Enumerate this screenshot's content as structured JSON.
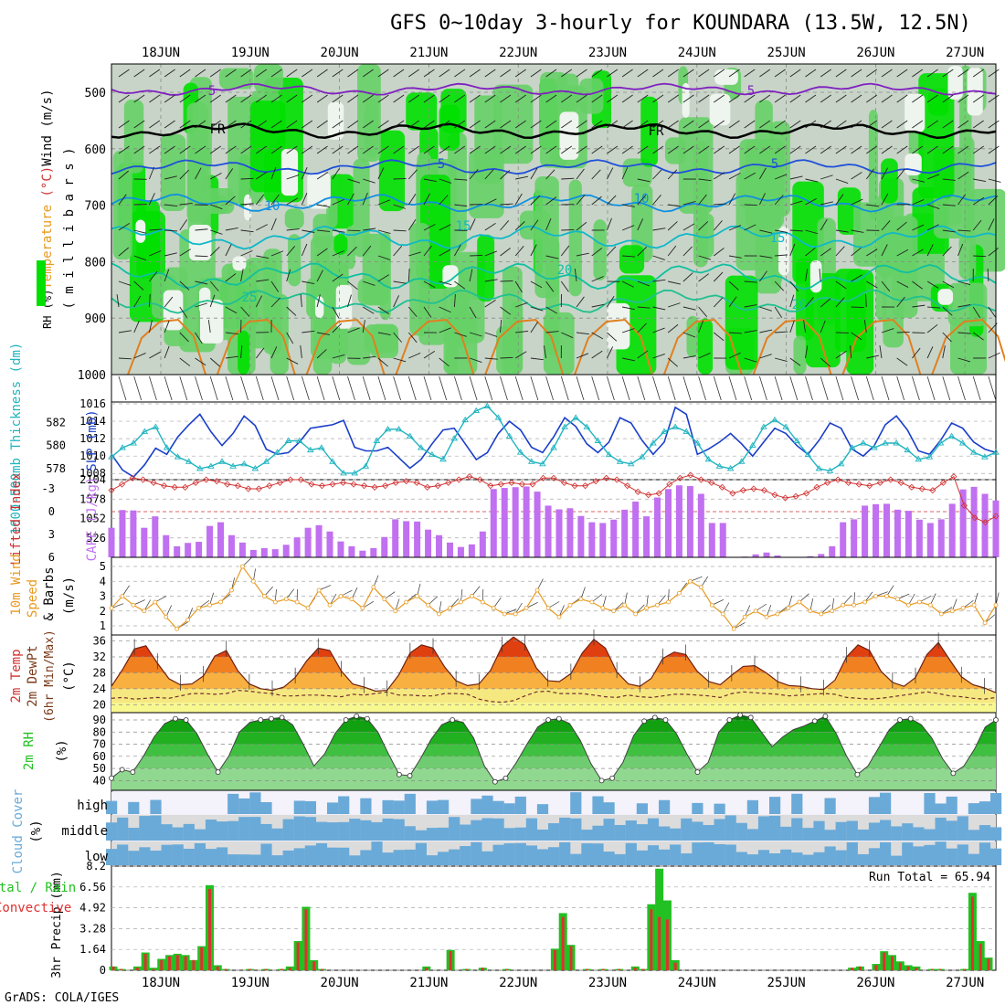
{
  "title": "GFS 0~10day 3-hourly for KOUNDARA (13.5W, 12.5N)",
  "credit": "GrADS: COLA/IGES",
  "run_total_label": "Run Total = 65.94",
  "colors": {
    "grid": "#999999",
    "rh_green1": "#00e000",
    "rh_green2": "#66d066",
    "rh_grey": "#c8d4c8",
    "slp": "#1a3ec8",
    "thick": "#20b4c0",
    "li": "#d03030",
    "cape": "#c070f0",
    "wind10": "#e89a20",
    "cloud": "#6aaad8",
    "rain_total": "#22c022",
    "rain_conv": "#e03030",
    "rh2m_dark": "#008000",
    "rh2m_light": "#88dd88"
  },
  "chart_data": [
    {
      "panel": "upper-air",
      "type": "heatmap",
      "ylabel_parts": [
        "RH (%)",
        "Temperature",
        " (°C)",
        "Wind",
        " (m/s)"
      ],
      "ylabel2": "( m i l l i b a r s )",
      "y_ticks": [
        "500",
        "600",
        "700",
        "800",
        "900",
        "1000"
      ],
      "isotherm_labels": [
        "FR",
        "FR",
        "5",
        "5",
        "5",
        "5",
        "10",
        "10",
        "15",
        "15",
        "20",
        "20",
        "25"
      ],
      "dates": [
        "18JUN",
        "19JUN",
        "20JUN",
        "21JUN",
        "22JUN",
        "23JUN",
        "24JUN",
        "25JUN",
        "26JUN",
        "27JUN"
      ]
    },
    {
      "panel": "slp-thickness",
      "type": "line",
      "ylabel_left": "1000-500mb Thickness (dm)",
      "ylabel_right": "SLP (mb)",
      "left_ticks": [
        "582",
        "580",
        "578"
      ],
      "right_ticks": [
        "1016",
        "1014",
        "1012",
        "1010",
        "1008"
      ],
      "series": [
        {
          "name": "SLP",
          "values": [
            1010.2,
            1008.4,
            1007.6,
            1009.0,
            1010.9,
            1010.2,
            1012.2,
            1013.6,
            1014.8,
            1012.8,
            1011.2,
            1012.6,
            1014.6,
            1013.5,
            1010.8,
            1010.2,
            1010.4,
            1011.6,
            1013.2,
            1013.4,
            1013.6,
            1014.1,
            1011.0,
            1010.6,
            1010.6,
            1011.0,
            1009.8,
            1008.6,
            1009.6,
            1011.4,
            1013.0,
            1013.2,
            1011.4,
            1009.6,
            1010.4,
            1012.6,
            1014.0,
            1013.0,
            1011.0,
            1010.4,
            1012.2,
            1014.4,
            1013.4,
            1011.4,
            1010.4,
            1011.6,
            1014.4,
            1013.8,
            1011.8,
            1010.2,
            1011.6,
            1015.6,
            1014.8,
            1010.2,
            1010.8,
            1011.6,
            1012.6,
            1011.4,
            1010.0,
            1011.6,
            1013.2,
            1012.6,
            1011.2,
            1010.2,
            1011.8,
            1013.8,
            1013.2,
            1010.8,
            1010.0,
            1011.2,
            1013.6,
            1014.6,
            1013.0,
            1010.6,
            1010.2,
            1011.8,
            1013.8,
            1013.2,
            1011.6,
            1010.8,
            1010.4
          ]
        },
        {
          "name": "Thickness",
          "values": [
            579.0,
            579.8,
            580.2,
            581.2,
            581.6,
            579.8,
            579.0,
            578.6,
            578.0,
            578.2,
            578.6,
            578.2,
            578.4,
            578.0,
            578.6,
            579.4,
            580.4,
            580.4,
            579.6,
            579.8,
            578.6,
            577.6,
            577.6,
            578.2,
            580.4,
            581.4,
            581.4,
            580.8,
            579.8,
            579.2,
            578.8,
            580.6,
            582.2,
            583.0,
            583.4,
            582.4,
            580.8,
            579.4,
            578.6,
            578.4,
            579.8,
            581.6,
            582.4,
            581.6,
            580.4,
            579.2,
            578.6,
            578.4,
            579.0,
            580.2,
            581.2,
            581.6,
            581.2,
            580.2,
            578.8,
            578.2,
            578.0,
            578.6,
            580.0,
            581.6,
            582.2,
            581.6,
            580.4,
            579.2,
            578.0,
            577.8,
            578.4,
            579.8,
            580.2,
            579.8,
            580.2,
            580.2,
            579.6,
            578.8,
            579.0,
            580.2,
            580.8,
            580.2,
            579.4,
            579.0,
            579.4
          ]
        }
      ]
    },
    {
      "panel": "li-cape",
      "type": "bar",
      "ylabel_left": "Lifted Index",
      "ylabel_right": "CAPE (J/kg)",
      "left_ticks": [
        "-3",
        "0",
        "3",
        "6"
      ],
      "right_ticks": [
        "2104",
        "1578",
        "1052",
        "526"
      ],
      "series": [
        {
          "name": "CAPE",
          "values": [
            800,
            1280,
            1270,
            800,
            1110,
            600,
            300,
            390,
            420,
            850,
            950,
            600,
            400,
            200,
            250,
            220,
            340,
            540,
            800,
            870,
            700,
            430,
            300,
            180,
            250,
            550,
            1030,
            980,
            970,
            750,
            600,
            400,
            280,
            350,
            700,
            1850,
            1880,
            1900,
            1920,
            1780,
            1400,
            1300,
            1330,
            1120,
            950,
            930,
            1020,
            1290,
            1510,
            1110,
            1620,
            1850,
            1950,
            1930,
            1720,
            930,
            930,
            0,
            20,
            80,
            130,
            50,
            10,
            0,
            30,
            90,
            300,
            950,
            1030,
            1400,
            1440,
            1450,
            1290,
            1260,
            1020,
            930,
            1030,
            1450,
            1840,
            1910,
            1720,
            1540
          ]
        },
        {
          "name": "LI",
          "values": [
            -2.8,
            -3.6,
            -4.4,
            -4.2,
            -3.8,
            -3.4,
            -3.2,
            -3.2,
            -3.8,
            -4.2,
            -4.0,
            -3.6,
            -3.4,
            -3.0,
            -3.0,
            -3.4,
            -3.8,
            -4.2,
            -4.2,
            -3.6,
            -3.4,
            -3.6,
            -3.8,
            -3.6,
            -3.4,
            -3.2,
            -3.4,
            -3.8,
            -4.0,
            -3.8,
            -3.2,
            -3.4,
            -3.8,
            -4.2,
            -4.6,
            -4.2,
            -3.4,
            -3.6,
            -3.8,
            -3.6,
            -3.6,
            -4.4,
            -4.4,
            -3.8,
            -3.4,
            -3.4,
            -4.0,
            -4.4,
            -4.2,
            -3.4,
            -2.6,
            -2.2,
            -2.4,
            -3.6,
            -4.4,
            -4.8,
            -4.2,
            -3.8,
            -3.2,
            -2.4,
            -2.8,
            -3.0,
            -2.8,
            -2.2,
            -1.8,
            -2.0,
            -2.4,
            -3.2,
            -3.8,
            -4.2,
            -3.8,
            -3.6,
            -3.4,
            -3.8,
            -4.2,
            -3.8,
            -3.2,
            -3.0,
            -2.8,
            -3.8,
            -4.6,
            -0.8,
            0.8,
            1.4,
            0.6
          ]
        }
      ]
    },
    {
      "panel": "wind10m",
      "type": "line",
      "ylabel_left": "10m Wind Speed & Barbs",
      "ylabel_right": "(m/s)",
      "ticks": [
        "5",
        "4",
        "3",
        "2",
        "1"
      ],
      "values": [
        2.2,
        3.0,
        2.4,
        2.0,
        2.6,
        1.6,
        0.8,
        1.4,
        2.2,
        2.4,
        2.6,
        3.4,
        5.0,
        4.0,
        3.0,
        2.6,
        2.8,
        2.6,
        2.2,
        3.4,
        2.4,
        3.0,
        2.8,
        2.2,
        3.6,
        2.8,
        2.0,
        2.6,
        3.0,
        2.4,
        1.8,
        2.2,
        2.6,
        3.0,
        2.6,
        2.2,
        1.8,
        1.8,
        2.2,
        3.4,
        2.2,
        1.6,
        2.4,
        2.8,
        2.6,
        2.2,
        2.0,
        2.4,
        1.8,
        2.2,
        2.4,
        2.6,
        3.2,
        4.0,
        3.6,
        2.4,
        1.8,
        0.8,
        1.6,
        2.0,
        1.6,
        1.8,
        2.2,
        2.6,
        2.0,
        1.8,
        2.0,
        2.4,
        2.4,
        2.6,
        3.0,
        3.0,
        2.8,
        2.4,
        2.6,
        2.4,
        1.8,
        2.0,
        2.2,
        2.4,
        1.2,
        2.4
      ]
    },
    {
      "panel": "temp2m",
      "type": "area",
      "ylabel_parts": [
        "2m Temp",
        "2m DewPt",
        "(6hr Min/Max)"
      ],
      "ylabel_right": "(°C)",
      "ticks": [
        "36",
        "32",
        "28",
        "24",
        "20"
      ],
      "temp": [
        24.6,
        29.0,
        34.0,
        34.8,
        30.4,
        26.5,
        25.0,
        25.2,
        27.2,
        32.2,
        33.6,
        28.5,
        25.2,
        24.0,
        23.6,
        24.4,
        26.8,
        31.0,
        34.2,
        33.6,
        28.5,
        25.2,
        24.4,
        23.4,
        23.6,
        27.4,
        33.0,
        35.0,
        34.2,
        29.5,
        26.0,
        24.8,
        25.2,
        28.6,
        34.6,
        37.0,
        35.0,
        29.2,
        26.0,
        25.8,
        27.8,
        33.0,
        36.4,
        34.2,
        28.2,
        25.2,
        24.6,
        26.6,
        31.6,
        33.2,
        32.6,
        28.4,
        25.8,
        25.0,
        27.4,
        29.6,
        29.8,
        28.0,
        25.8,
        24.8,
        24.6,
        24.0,
        23.8,
        26.2,
        32.0,
        35.0,
        33.6,
        28.4,
        25.6,
        24.6,
        26.8,
        32.6,
        35.6,
        31.2,
        27.0,
        25.0,
        24.2,
        23.0
      ],
      "dewpt": [
        21.6,
        21.8,
        21.4,
        21.6,
        21.8,
        21.6,
        22.2,
        22.8,
        22.8,
        22.6,
        22.8,
        23.6,
        23.4,
        23.0,
        22.8,
        22.2,
        22.2,
        22.4,
        22.4,
        22.2,
        22.0,
        22.6,
        22.4,
        22.8,
        23.2,
        22.4,
        22.4,
        22.2,
        22.2,
        22.8,
        22.8,
        22.6,
        21.4,
        20.8,
        20.6,
        21.0,
        22.2,
        23.2,
        23.4,
        22.8,
        22.8,
        22.8,
        22.4,
        22.0,
        21.8,
        22.4,
        22.0,
        21.8,
        22.2,
        22.6,
        22.6,
        22.4,
        22.2,
        21.8,
        22.8,
        23.2,
        23.0,
        22.8,
        22.6,
        22.2,
        22.4,
        22.6,
        22.8,
        22.6,
        21.8,
        21.6,
        21.4,
        21.6,
        22.0,
        22.4,
        22.8,
        23.2,
        22.8,
        22.2,
        22.0,
        21.6,
        21.4,
        21.8
      ]
    },
    {
      "panel": "rh2m",
      "type": "area",
      "ylabel": "2m RH",
      "ylabel_right": "(%)",
      "ticks": [
        "90",
        "80",
        "70",
        "60",
        "50",
        "40"
      ],
      "values": [
        42,
        49,
        47,
        60,
        76,
        87,
        91,
        90,
        79,
        62,
        47,
        60,
        80,
        88,
        90,
        91,
        92,
        86,
        70,
        52,
        62,
        79,
        90,
        93,
        91,
        80,
        62,
        45,
        44,
        58,
        74,
        86,
        90,
        88,
        75,
        52,
        39,
        42,
        55,
        70,
        84,
        90,
        91,
        87,
        73,
        54,
        40,
        42,
        55,
        77,
        89,
        92,
        90,
        79,
        62,
        47,
        55,
        80,
        90,
        94,
        92,
        80,
        68,
        76,
        82,
        85,
        89,
        93,
        79,
        60,
        45,
        52,
        67,
        82,
        90,
        91,
        86,
        75,
        58,
        46,
        52,
        66,
        84,
        90
      ]
    },
    {
      "panel": "cloud",
      "type": "bar",
      "ylabel": "Cloud Cover (%)",
      "rows": [
        "high",
        "middle",
        "low"
      ]
    },
    {
      "panel": "precip",
      "type": "bar",
      "ylabel_parts": [
        "Total / Rain",
        "Convective"
      ],
      "ylabel_right": "3hr Precip (mm)",
      "ticks": [
        "8.2",
        "6.56",
        "4.92",
        "3.28",
        "1.64",
        "0"
      ],
      "series": [
        {
          "name": "Total",
          "values": [
            0.3,
            0.1,
            0,
            0.3,
            1.4,
            0.2,
            0.9,
            1.2,
            1.3,
            1.2,
            0.8,
            1.9,
            6.7,
            0.4,
            0.1,
            0,
            0,
            0.1,
            0,
            0.1,
            0,
            0.1,
            0.3,
            2.3,
            5.0,
            0.8,
            0.1,
            0,
            0,
            0,
            0,
            0,
            0,
            0,
            0,
            0,
            0,
            0,
            0,
            0.3,
            0,
            0,
            1.6,
            0,
            0.1,
            0,
            0.2,
            0,
            0,
            0.1,
            0,
            0,
            0,
            0,
            0,
            1.7,
            4.5,
            2.0,
            0,
            0.1,
            0,
            0.1,
            0,
            0.1,
            0,
            0.3,
            0.1,
            5.2,
            8.0,
            5.5,
            0.8,
            0,
            0,
            0,
            0,
            0,
            0,
            0,
            0,
            0,
            0,
            0,
            0,
            0,
            0,
            0,
            0,
            0,
            0,
            0,
            0,
            0,
            0.2,
            0.3,
            0,
            0.5,
            1.5,
            1.2,
            0.7,
            0.4,
            0.3,
            0,
            0.1,
            0.1,
            0,
            0,
            0.1,
            6.1,
            2.3,
            1.0
          ]
        },
        {
          "name": "Convective",
          "values": [
            0.3,
            0.1,
            0,
            0.2,
            1.3,
            0.1,
            0.8,
            1.1,
            1.2,
            1.1,
            0.8,
            1.8,
            6.4,
            0.3,
            0.1,
            0,
            0,
            0.1,
            0,
            0.1,
            0,
            0.1,
            0.2,
            2.2,
            4.8,
            0.7,
            0.1,
            0,
            0,
            0,
            0,
            0,
            0,
            0,
            0,
            0,
            0,
            0,
            0,
            0.2,
            0,
            0,
            1.5,
            0,
            0.1,
            0,
            0.2,
            0,
            0,
            0.1,
            0,
            0,
            0,
            0,
            0,
            1.6,
            4.2,
            1.9,
            0,
            0.1,
            0,
            0.1,
            0,
            0.1,
            0,
            0.2,
            0.1,
            4.8,
            4.2,
            4.0,
            0.6,
            0,
            0,
            0,
            0,
            0,
            0,
            0,
            0,
            0,
            0,
            0,
            0,
            0,
            0,
            0,
            0,
            0,
            0,
            0,
            0,
            0,
            0.2,
            0.3,
            0,
            0.4,
            1.4,
            1.1,
            0.6,
            0.3,
            0.2,
            0,
            0.1,
            0.1,
            0,
            0,
            0.1,
            5.8,
            2.1,
            0.9
          ]
        }
      ]
    }
  ]
}
